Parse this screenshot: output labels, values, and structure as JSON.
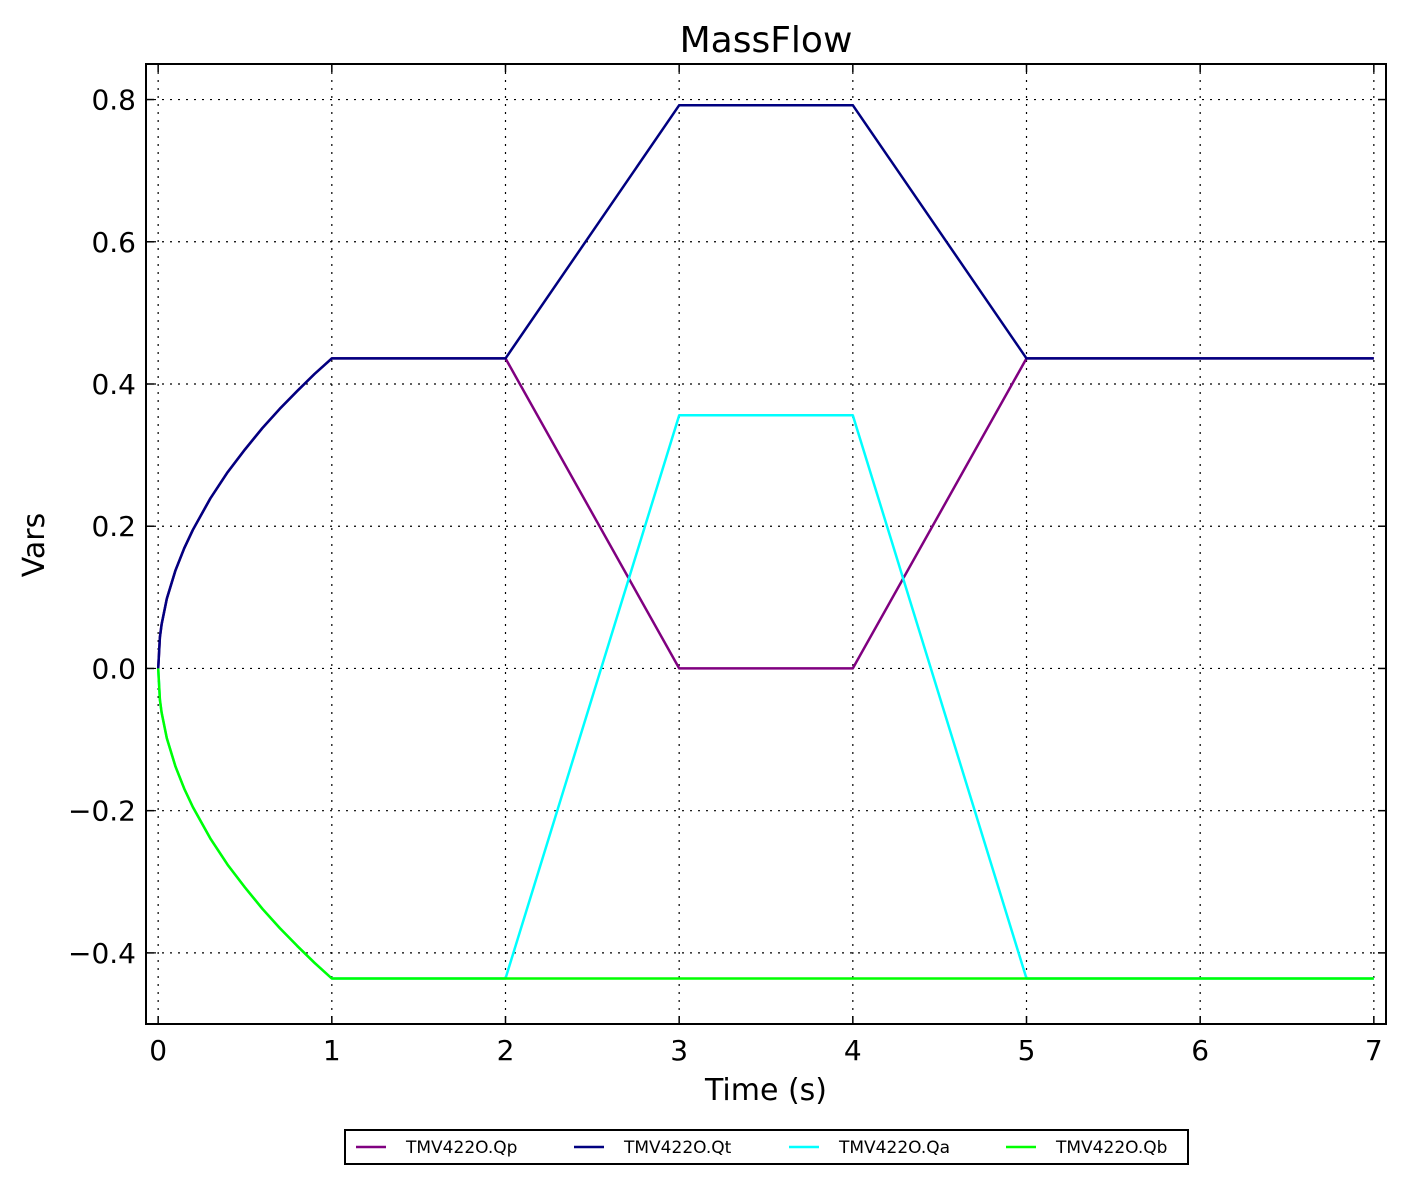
{
  "chart_data": {
    "type": "line",
    "title": "MassFlow",
    "xlabel": "Time (s)",
    "ylabel": "Vars",
    "xlim": [
      -0.07,
      7.07
    ],
    "ylim": [
      -0.5,
      0.85
    ],
    "xticks": [
      0,
      1,
      2,
      3,
      4,
      5,
      6,
      7
    ],
    "xtick_labels": [
      "0",
      "1",
      "2",
      "3",
      "4",
      "5",
      "6",
      "7"
    ],
    "yticks": [
      -0.4,
      -0.2,
      0.0,
      0.2,
      0.4,
      0.6,
      0.8
    ],
    "ytick_labels": [
      "−0.4",
      "−0.2",
      "0.0",
      "0.2",
      "0.4",
      "0.6",
      "0.8"
    ],
    "grid": true,
    "legend_position": "bottom-center",
    "series": [
      {
        "name": "TMV422O.Qp",
        "color": "#800080",
        "x": [
          0,
          0.01,
          0.02,
          0.05,
          0.1,
          0.15,
          0.2,
          0.3,
          0.4,
          0.5,
          0.6,
          0.7,
          0.8,
          0.9,
          1,
          2,
          3,
          4,
          5,
          7
        ],
        "y": [
          0,
          0.044,
          0.062,
          0.098,
          0.138,
          0.169,
          0.195,
          0.239,
          0.276,
          0.308,
          0.338,
          0.365,
          0.39,
          0.414,
          0.436,
          0.436,
          0,
          0,
          0.436,
          0.436
        ]
      },
      {
        "name": "TMV422O.Qt",
        "color": "#000080",
        "x": [
          0,
          0.01,
          0.02,
          0.05,
          0.1,
          0.15,
          0.2,
          0.3,
          0.4,
          0.5,
          0.6,
          0.7,
          0.8,
          0.9,
          1,
          2,
          3,
          4,
          5,
          7
        ],
        "y": [
          0,
          0.044,
          0.062,
          0.098,
          0.138,
          0.169,
          0.195,
          0.239,
          0.276,
          0.308,
          0.338,
          0.365,
          0.39,
          0.414,
          0.436,
          0.436,
          0.792,
          0.792,
          0.436,
          0.436
        ]
      },
      {
        "name": "TMV422O.Qa",
        "color": "#00FFFF",
        "x": [
          0,
          0.01,
          0.02,
          0.05,
          0.1,
          0.15,
          0.2,
          0.3,
          0.4,
          0.5,
          0.6,
          0.7,
          0.8,
          0.9,
          1,
          2,
          3,
          4,
          5,
          7
        ],
        "y": [
          0,
          -0.044,
          -0.062,
          -0.098,
          -0.138,
          -0.169,
          -0.195,
          -0.239,
          -0.276,
          -0.308,
          -0.338,
          -0.365,
          -0.39,
          -0.414,
          -0.436,
          -0.436,
          0.356,
          0.356,
          -0.436,
          -0.436
        ]
      },
      {
        "name": "TMV422O.Qb",
        "color": "#00FF00",
        "x": [
          0,
          0.01,
          0.02,
          0.05,
          0.1,
          0.15,
          0.2,
          0.3,
          0.4,
          0.5,
          0.6,
          0.7,
          0.8,
          0.9,
          1,
          7
        ],
        "y": [
          0,
          -0.044,
          -0.062,
          -0.098,
          -0.138,
          -0.169,
          -0.195,
          -0.239,
          -0.276,
          -0.308,
          -0.338,
          -0.365,
          -0.39,
          -0.414,
          -0.436,
          -0.436
        ]
      }
    ]
  }
}
